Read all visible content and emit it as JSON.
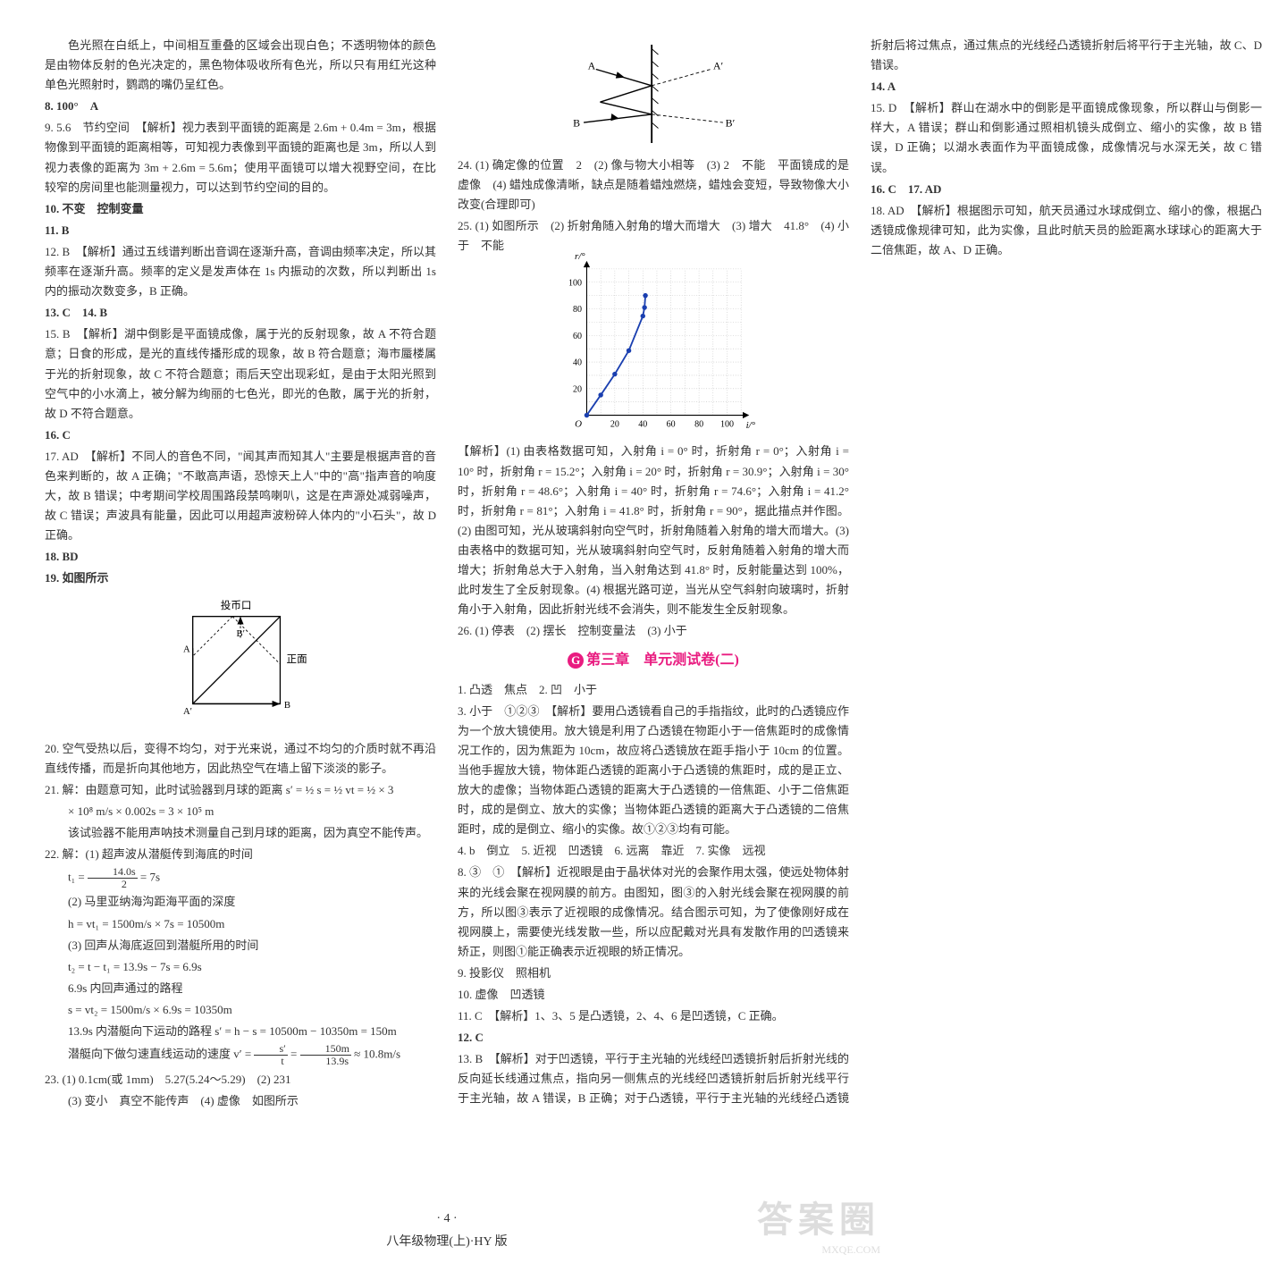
{
  "left": {
    "p1": "色光照在白纸上，中间相互重叠的区域会出现白色；不透明物体的颜色是由物体反射的色光决定的，黑色物体吸收所有色光，所以只有用红光这种单色光照射时，鹦鹉的嘴仍呈红色。",
    "i8": "8. 100°　A",
    "i9": "9. 5.6　节约空间　【解析】视力表到平面镜的距离是 2.6m + 0.4m = 3m，根据物像到平面镜的距离相等，可知视力表像到平面镜的距离也是 3m，所以人到视力表像的距离为 3m + 2.6m = 5.6m；使用平面镜可以增大视野空间，在比较窄的房间里也能测量视力，可以达到节约空间的目的。",
    "i10": "10. 不变　控制变量",
    "i11": "11. B",
    "i12": "12. B　【解析】通过五线谱判断出音调在逐渐升高，音调由频率决定，所以其频率在逐渐升高。频率的定义是发声体在 1s 内振动的次数，所以判断出 1s 内的振动次数变多，B 正确。",
    "i13": "13. C　14. B",
    "i15": "15. B　【解析】湖中倒影是平面镜成像，属于光的反射现象，故 A 不符合题意；日食的形成，是光的直线传播形成的现象，故 B 符合题意；海市蜃楼属于光的折射现象，故 C 不符合题意；雨后天空出现彩虹，是由于太阳光照到空气中的小水滴上，被分解为绚丽的七色光，即光的色散，属于光的折射，故 D 不符合题意。",
    "i16": "16. C",
    "i17": "17. AD　【解析】不同人的音色不同，\"闻其声而知其人\"主要是根据声音的音色来判断的，故 A 正确；\"不敢高声语，恐惊天上人\"中的\"高\"指声音的响度大，故 B 错误；中考期间学校周围路段禁鸣喇叭，这是在声源处减弱噪声，故 C 错误；声波具有能量，因此可以用超声波粉碎人体内的\"小石头\"，故 D 正确。",
    "i18": "18. BD",
    "i19_head": "19. 如图所示",
    "i19_label_top": "投币口",
    "i19_label_right": "正面",
    "i20": "20. 空气受热以后，变得不均匀，对于光来说，通过不均匀的介质时就不再沿直线传播，而是折向其他地方，因此热空气在墙上留下淡淡的影子。",
    "i21_head": "21. 解：由题意可知，此时试验器到月球的距离",
    "i21_expr1": "s′ = ½ s = ½ vt = ½ × 3",
    "i21_expr2": "× 10⁸ m/s × 0.002s = 3 × 10⁵ m",
    "i21_p": "该试验器不能用声呐技术测量自己到月球的距离，因为真空不能传声。",
    "i22_head": "22. 解：(1) 超声波从潜艇传到海底的时间",
    "i22_t1_lhs": "t₁ = ",
    "i22_t1_n": "14.0s",
    "i22_t1_d": "2",
    "i22_t1_rhs": " = 7s",
    "i22_2": "(2) 马里亚纳海沟距海平面的深度",
    "i22_h": "h = vt₁ = 1500m/s × 7s = 10500m",
    "i22_3": "(3) 回声从海底返回到潜艇所用的时间",
    "i22_t2": "t₂ = t − t₁ = 13.9s − 7s = 6.9s",
    "i22_s1": "6.9s 内回声通过的路程",
    "i22_s": "s = vt₂ = 1500m/s × 6.9s = 10350m",
    "i22_s2": "13.9s 内潜艇向下运动的路程 s′ = h − s = 10500m − 10350m = 150m",
    "i22_v_lhs": "潜艇向下做匀速直线运动的速度 v′ = ",
    "i22_v_n": "s′",
    "i22_v_d": "t",
    "i22_v_mid": " = ",
    "i22_v_n2": "150m",
    "i22_v_d2": "13.9s",
    "i22_v_rhs": " ≈ 10.8m/s",
    "i23_1": "23. (1) 0.1cm(或 1mm)　5.27(5.24～5.29)　(2) 231",
    "i23_2": "(3) 变小　真空不能传声　(4) 虚像　如图所示"
  },
  "right": {
    "i24": "24. (1) 确定像的位置　2　(2) 像与物大小相等　(3) 2　不能　平面镜成的是虚像　(4) 蜡烛成像清晰，缺点是随着蜡烛燃烧，蜡烛会变短，导致物像大小改变(合理即可)",
    "i25_head": "25. (1) 如图所示　(2) 折射角随入射角的增大而增大　(3) 增大　41.8°　(4) 小于　不能",
    "chart": {
      "xlabel": "i/°",
      "ylabel": "r/°",
      "xlim": [
        0,
        110
      ],
      "ylim": [
        0,
        110
      ],
      "xticks": [
        20,
        40,
        60,
        80,
        100
      ],
      "yticks": [
        20,
        40,
        60,
        80,
        100
      ],
      "points_x": [
        0,
        10,
        20,
        30,
        40,
        41.2,
        41.8
      ],
      "points_y": [
        0,
        15.2,
        30.9,
        48.6,
        74.6,
        81,
        90
      ],
      "line_color": "#1a3fb0",
      "grid_color": "#bbbbbb",
      "bg": "#ffffff",
      "line_width": 2,
      "marker_size": 3
    },
    "i25_ana": "【解析】(1) 由表格数据可知，入射角 i = 0° 时，折射角 r = 0°；入射角 i = 10° 时，折射角 r = 15.2°；入射角 i = 20° 时，折射角 r = 30.9°；入射角 i = 30° 时，折射角 r = 48.6°；入射角 i = 40° 时，折射角 r = 74.6°；入射角 i = 41.2° 时，折射角 r = 81°；入射角 i = 41.8° 时，折射角 r = 90°，据此描点并作图。(2) 由图可知，光从玻璃斜射向空气时，折射角随着入射角的增大而增大。(3) 由表格中的数据可知，光从玻璃斜射向空气时，反射角随着入射角的增大而增大；折射角总大于入射角，当入射角达到 41.8° 时，反射能量达到 100%，此时发生了全反射现象。(4) 根据光路可逆，当光从空气斜射向玻璃时，折射角小于入射角，因此折射光线不会消失，则不能发生全反射现象。",
    "i26": "26. (1) 停表　(2) 摆长　控制变量法　(3) 小于",
    "section": "第三章　单元测试卷(二)",
    "circle": "G",
    "r1": "1. 凸透　焦点　2. 凹　小于",
    "r3": "3. 小于　①②③　【解析】要用凸透镜看自己的手指指纹，此时的凸透镜应作为一个放大镜使用。放大镜是利用了凸透镜在物距小于一倍焦距时的成像情况工作的，因为焦距为 10cm，故应将凸透镜放在距手指小于 10cm 的位置。当他手握放大镜，物体距凸透镜的距离小于凸透镜的焦距时，成的是正立、放大的虚像；当物体距凸透镜的距离大于凸透镜的一倍焦距、小于二倍焦距时，成的是倒立、放大的实像；当物体距凸透镜的距离大于凸透镜的二倍焦距时，成的是倒立、缩小的实像。故①②③均有可能。",
    "r4": "4. b　倒立　5. 近视　凹透镜　6. 远离　靠近　7. 实像　远视",
    "r8": "8. ③　①　【解析】近视眼是由于晶状体对光的会聚作用太强，使远处物体射来的光线会聚在视网膜的前方。由图知，图③的入射光线会聚在视网膜的前方，所以图③表示了近视眼的成像情况。结合图示可知，为了使像刚好成在视网膜上，需要使光线发散一些，所以应配戴对光具有发散作用的凹透镜来矫正，则图①能正确表示近视眼的矫正情况。",
    "r9": "9. 投影仪　照相机",
    "r10": "10. 虚像　凹透镜",
    "r11": "11. C　【解析】1、3、5 是凸透镜，2、4、6 是凹透镜，C 正确。",
    "r12": "12. C",
    "r13": "13. B　【解析】对于凹透镜，平行于主光轴的光线经凹透镜折射后折射光线的反向延长线通过焦点，指向另一侧焦点的光线经凹透镜折射后折射光线平行于主光轴，故 A 错误，B 正确；对于凸透镜，平行于主光轴的光线经凸透镜折射后将过焦点，通过焦点的光线经凸透镜折射后将平行于主光轴，故 C、D 错误。",
    "r14": "14. A",
    "r15": "15. D　【解析】群山在湖水中的倒影是平面镜成像现象，所以群山与倒影一样大，A 错误；群山和倒影通过照相机镜头成倒立、缩小的实像，故 B 错误，D 正确；以湖水表面作为平面镜成像，成像情况与水深无关，故 C 错误。",
    "r16": "16. C　17. AD",
    "r18": "18. AD　【解析】根据图示可知，航天员通过水球成倒立、缩小的像，根据凸透镜成像规律可知，此为实像，且此时航天员的脸距离水球球心的距离大于二倍焦距，故 A、D 正确。"
  },
  "footer": {
    "page": "· 4 ·",
    "book": "八年级物理(上)·HY 版"
  },
  "watermark": {
    "big": "答案圈",
    "url": "MXQE.COM"
  }
}
